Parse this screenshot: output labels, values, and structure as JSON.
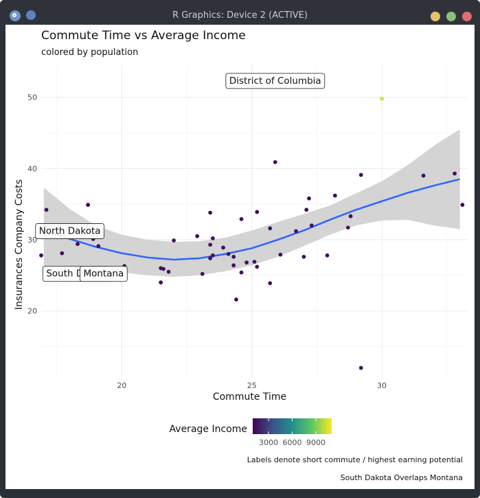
{
  "window": {
    "title": "R Graphics: Device 2 (ACTIVE)",
    "buttons": {
      "minimize_color": "#e8c26b",
      "maximize_color": "#8cbf7e",
      "close_color": "#e06c75"
    }
  },
  "chart_data": {
    "type": "scatter",
    "title": "Commute Time vs Average Income",
    "subtitle": "colored by population",
    "xlabel": "Commute Time",
    "ylabel": "Insurances Company Costs",
    "xlim": [
      16.9,
      33.3
    ],
    "ylim": [
      10.8,
      54.6
    ],
    "x_ticks": [
      20,
      25,
      30
    ],
    "y_ticks": [
      20,
      30,
      40,
      50
    ],
    "grid": true,
    "legend": {
      "title": "Average Income",
      "position": "bottom",
      "ticks": [
        3000,
        6000,
        9000
      ],
      "tick_labels": [
        "3000",
        "6000",
        "9000"
      ],
      "range": [
        1000,
        11000
      ],
      "colors": [
        "#440154",
        "#3b528b",
        "#21908c",
        "#5dc863",
        "#fde725"
      ]
    },
    "smooth": {
      "color": "#3366ff",
      "band_color": "#cccccc",
      "x": [
        17.0,
        18,
        19,
        20,
        21,
        22,
        23,
        24,
        25,
        26,
        27,
        28,
        29,
        30,
        31,
        32,
        33.0
      ],
      "y": [
        31.5,
        30.1,
        29.0,
        28.1,
        27.5,
        27.2,
        27.4,
        28.0,
        28.8,
        30.0,
        31.3,
        32.8,
        34.2,
        35.4,
        36.6,
        37.6,
        38.5
      ],
      "lower": [
        25.8,
        26.0,
        25.9,
        25.4,
        25.0,
        24.8,
        25.0,
        25.6,
        26.4,
        27.6,
        29.1,
        30.7,
        32.0,
        32.7,
        32.8,
        32.0,
        31.5
      ],
      "upper": [
        37.3,
        34.3,
        32.0,
        30.7,
        30.0,
        29.7,
        29.8,
        30.3,
        31.3,
        32.5,
        33.6,
        34.8,
        36.5,
        38.2,
        40.5,
        43.2,
        45.5
      ]
    },
    "points": [
      {
        "x": 16.9,
        "y": 27.8,
        "c": 1300
      },
      {
        "x": 17.1,
        "y": 34.2,
        "c": 1500
      },
      {
        "x": 17.7,
        "y": 28.1,
        "c": 1400
      },
      {
        "x": 18.3,
        "y": 29.4,
        "c": 1300
      },
      {
        "x": 18.7,
        "y": 34.9,
        "c": 1300
      },
      {
        "x": 18.9,
        "y": 30.1,
        "c": 1600
      },
      {
        "x": 19.1,
        "y": 29.1,
        "c": 1400
      },
      {
        "x": 20.1,
        "y": 26.3,
        "c": 1500
      },
      {
        "x": 21.5,
        "y": 26.0,
        "c": 1400
      },
      {
        "x": 21.6,
        "y": 25.9,
        "c": 1600
      },
      {
        "x": 21.5,
        "y": 24.0,
        "c": 1200
      },
      {
        "x": 21.8,
        "y": 25.5,
        "c": 1500
      },
      {
        "x": 22.0,
        "y": 29.9,
        "c": 1600
      },
      {
        "x": 22.9,
        "y": 30.5,
        "c": 1400
      },
      {
        "x": 23.1,
        "y": 25.2,
        "c": 1500
      },
      {
        "x": 23.4,
        "y": 29.3,
        "c": 1600
      },
      {
        "x": 23.4,
        "y": 27.4,
        "c": 1500
      },
      {
        "x": 23.5,
        "y": 30.2,
        "c": 1400
      },
      {
        "x": 23.5,
        "y": 27.8,
        "c": 1500
      },
      {
        "x": 23.4,
        "y": 33.8,
        "c": 1300
      },
      {
        "x": 23.9,
        "y": 28.9,
        "c": 1500
      },
      {
        "x": 24.1,
        "y": 28.0,
        "c": 1600
      },
      {
        "x": 24.3,
        "y": 27.6,
        "c": 1400
      },
      {
        "x": 24.3,
        "y": 26.4,
        "c": 1500
      },
      {
        "x": 24.4,
        "y": 21.6,
        "c": 1300
      },
      {
        "x": 24.6,
        "y": 25.4,
        "c": 1400
      },
      {
        "x": 24.6,
        "y": 32.9,
        "c": 1500
      },
      {
        "x": 24.8,
        "y": 26.8,
        "c": 1600
      },
      {
        "x": 25.1,
        "y": 26.9,
        "c": 1700
      },
      {
        "x": 25.2,
        "y": 26.2,
        "c": 1400
      },
      {
        "x": 25.2,
        "y": 33.9,
        "c": 1300
      },
      {
        "x": 25.7,
        "y": 31.6,
        "c": 1600
      },
      {
        "x": 25.7,
        "y": 23.9,
        "c": 1400
      },
      {
        "x": 25.9,
        "y": 40.9,
        "c": 1300
      },
      {
        "x": 26.1,
        "y": 27.9,
        "c": 1500
      },
      {
        "x": 26.7,
        "y": 31.2,
        "c": 1600
      },
      {
        "x": 27.0,
        "y": 27.6,
        "c": 1400
      },
      {
        "x": 27.1,
        "y": 34.2,
        "c": 1300
      },
      {
        "x": 27.2,
        "y": 35.8,
        "c": 1300
      },
      {
        "x": 27.3,
        "y": 32.0,
        "c": 1500
      },
      {
        "x": 27.9,
        "y": 27.8,
        "c": 1400
      },
      {
        "x": 28.2,
        "y": 36.2,
        "c": 1300
      },
      {
        "x": 28.7,
        "y": 31.7,
        "c": 1600
      },
      {
        "x": 28.8,
        "y": 33.3,
        "c": 1500
      },
      {
        "x": 29.2,
        "y": 39.1,
        "c": 1400
      },
      {
        "x": 29.2,
        "y": 12.0,
        "c": 1600
      },
      {
        "x": 30.0,
        "y": 49.8,
        "c": 10500
      },
      {
        "x": 31.6,
        "y": 39.0,
        "c": 1500
      },
      {
        "x": 32.8,
        "y": 39.3,
        "c": 1400
      },
      {
        "x": 33.1,
        "y": 34.9,
        "c": 1300
      }
    ],
    "labels": [
      {
        "text": "District of Columbia",
        "x": 25.9,
        "y": 52.4
      },
      {
        "text": "North Dakota",
        "x": 18.0,
        "y": 31.3
      },
      {
        "text": "South Dakota",
        "x": 18.3,
        "y": 25.3
      },
      {
        "text": "Montana",
        "x": 19.3,
        "y": 25.3
      }
    ],
    "caption_lines": [
      "Labels denote short commute / highest earning potential",
      "South Dakota Overlaps Montana"
    ]
  }
}
